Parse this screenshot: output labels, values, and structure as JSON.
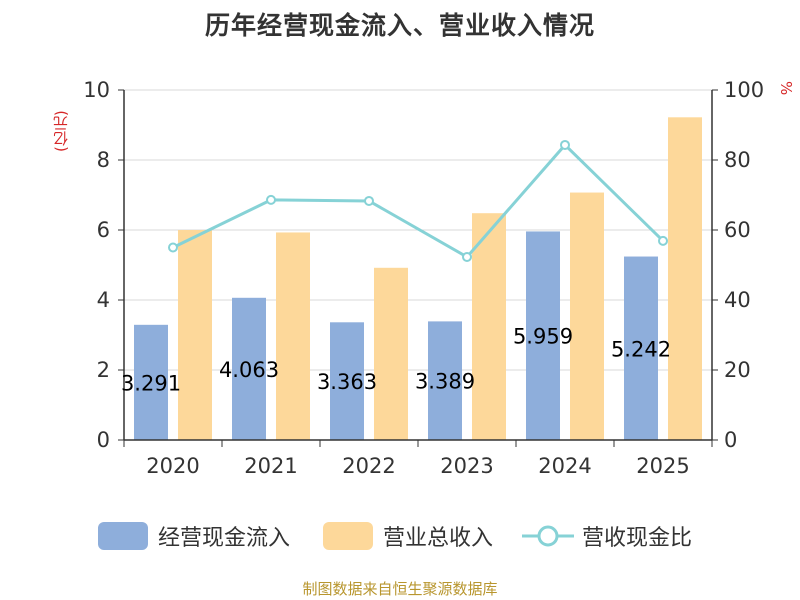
{
  "title": "历年经营现金流入、营业收入情况",
  "source": "制图数据来自恒生聚源数据库",
  "chart_data": {
    "type": "bar",
    "categories": [
      "2020",
      "2021",
      "2022",
      "2023",
      "2024",
      "2025"
    ],
    "series": [
      {
        "name": "经营现金流入",
        "type": "bar",
        "axis": "left",
        "color": "#8eaedb",
        "values": [
          3.291,
          4.063,
          3.363,
          3.389,
          5.959,
          5.242
        ],
        "labels": [
          "3.291",
          "4.063",
          "3.363",
          "3.389",
          "5.959",
          "5.242"
        ]
      },
      {
        "name": "营业总收入",
        "type": "bar",
        "axis": "left",
        "color": "#fdd89a",
        "values": [
          6.0,
          5.93,
          4.92,
          6.48,
          7.07,
          9.22
        ]
      },
      {
        "name": "营收现金比",
        "type": "line",
        "axis": "right",
        "color": "#86d2d6",
        "values": [
          55.0,
          68.6,
          68.3,
          52.3,
          84.3,
          56.9
        ]
      }
    ],
    "ylabel_left": "(亿元)",
    "ylabel_right": "%",
    "ylim_left": [
      0,
      10
    ],
    "ylim_right": [
      0,
      100
    ],
    "yticks_left": [
      "0",
      "2",
      "4",
      "6",
      "8",
      "10"
    ],
    "yticks_right": [
      "0",
      "20",
      "40",
      "60",
      "80",
      "100"
    ],
    "grid": true,
    "legend_position": "bottom"
  }
}
